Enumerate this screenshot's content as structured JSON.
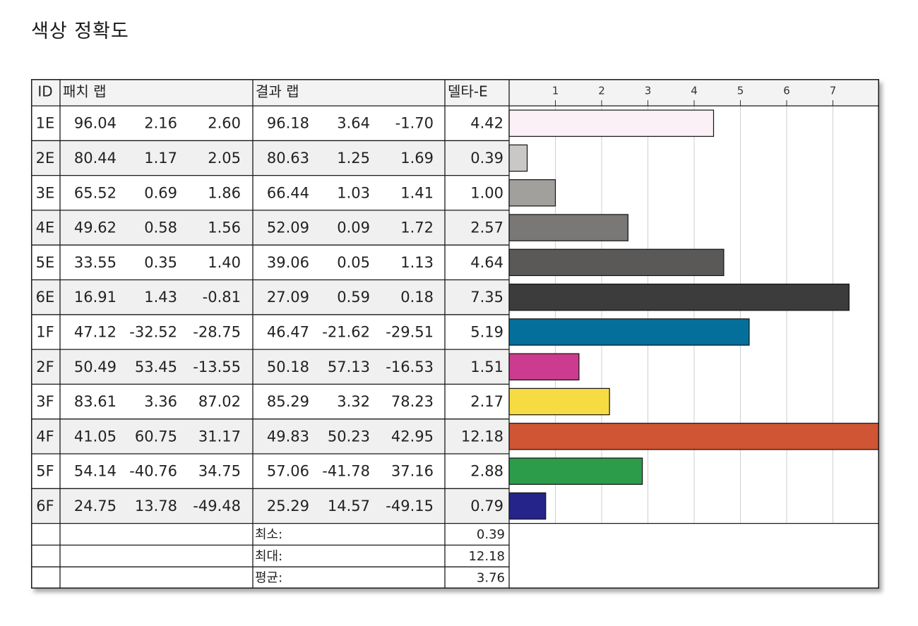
{
  "title": "색상 정확도",
  "headers": {
    "id": "ID",
    "patch": "패치 랩",
    "result": "결과 랩",
    "delta": "델타-E"
  },
  "stats": [
    {
      "label": "최소:",
      "value": "0.39"
    },
    {
      "label": "최대:",
      "value": "12.18"
    },
    {
      "label": "평균:",
      "value": "3.76"
    }
  ],
  "chart_data": {
    "type": "bar",
    "orientation": "horizontal",
    "xlim": [
      0,
      8
    ],
    "xticks": [
      "1",
      "2",
      "3",
      "4",
      "5",
      "6",
      "7"
    ],
    "grid": true,
    "rows": [
      {
        "id": "1E",
        "patch": [
          "96.04",
          "2.16",
          "2.60"
        ],
        "result": [
          "96.18",
          "3.64",
          "-1.70"
        ],
        "delta": "4.42",
        "value": 4.42,
        "color": "#fbf0f6"
      },
      {
        "id": "2E",
        "patch": [
          "80.44",
          "1.17",
          "2.05"
        ],
        "result": [
          "80.63",
          "1.25",
          "1.69"
        ],
        "delta": "0.39",
        "value": 0.39,
        "color": "#cac8c6"
      },
      {
        "id": "3E",
        "patch": [
          "65.52",
          "0.69",
          "1.86"
        ],
        "result": [
          "66.44",
          "1.03",
          "1.41"
        ],
        "delta": "1.00",
        "value": 1.0,
        "color": "#a2a09d"
      },
      {
        "id": "4E",
        "patch": [
          "49.62",
          "0.58",
          "1.56"
        ],
        "result": [
          "52.09",
          "0.09",
          "1.72"
        ],
        "delta": "2.57",
        "value": 2.57,
        "color": "#7a7876"
      },
      {
        "id": "5E",
        "patch": [
          "33.55",
          "0.35",
          "1.40"
        ],
        "result": [
          "39.06",
          "0.05",
          "1.13"
        ],
        "delta": "4.64",
        "value": 4.64,
        "color": "#5a5958"
      },
      {
        "id": "6E",
        "patch": [
          "16.91",
          "1.43",
          "-0.81"
        ],
        "result": [
          "27.09",
          "0.59",
          "0.18"
        ],
        "delta": "7.35",
        "value": 7.35,
        "color": "#3d3c3c"
      },
      {
        "id": "1F",
        "patch": [
          "47.12",
          "-32.52",
          "-28.75"
        ],
        "result": [
          "46.47",
          "-21.62",
          "-29.51"
        ],
        "delta": "5.19",
        "value": 5.19,
        "color": "#056f9c"
      },
      {
        "id": "2F",
        "patch": [
          "50.49",
          "53.45",
          "-13.55"
        ],
        "result": [
          "50.18",
          "57.13",
          "-16.53"
        ],
        "delta": "1.51",
        "value": 1.51,
        "color": "#cc3b8f"
      },
      {
        "id": "3F",
        "patch": [
          "83.61",
          "3.36",
          "87.02"
        ],
        "result": [
          "85.29",
          "3.32",
          "78.23"
        ],
        "delta": "2.17",
        "value": 2.17,
        "color": "#f6db42"
      },
      {
        "id": "4F",
        "patch": [
          "41.05",
          "60.75",
          "31.17"
        ],
        "result": [
          "49.83",
          "50.23",
          "42.95"
        ],
        "delta": "12.18",
        "value": 12.18,
        "color": "#cf5534"
      },
      {
        "id": "5F",
        "patch": [
          "54.14",
          "-40.76",
          "34.75"
        ],
        "result": [
          "57.06",
          "-41.78",
          "37.16"
        ],
        "delta": "2.88",
        "value": 2.88,
        "color": "#2c9c4b"
      },
      {
        "id": "6F",
        "patch": [
          "24.75",
          "13.78",
          "-49.48"
        ],
        "result": [
          "25.29",
          "14.57",
          "-49.15"
        ],
        "delta": "0.79",
        "value": 0.79,
        "color": "#24248a"
      }
    ]
  }
}
